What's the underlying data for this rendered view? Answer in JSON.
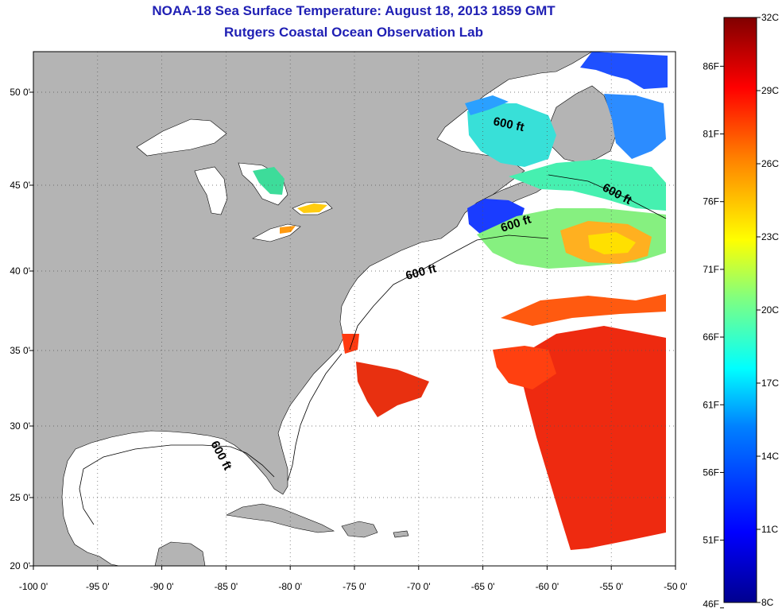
{
  "title": "NOAA-18 Sea Surface Temperature:  August 18, 2013 1859 GMT",
  "subtitle": "Rutgers Coastal Ocean Observation Lab",
  "lon_labels": [
    "-100 0'",
    "-95 0'",
    "-90 0'",
    "-85 0'",
    "-80 0'",
    "-75 0'",
    "-70 0'",
    "-65 0'",
    "-60 0'",
    "-55 0'",
    "-50 0'"
  ],
  "lat_labels": [
    "50 0'",
    "45 0'",
    "40 0'",
    "35 0'",
    "30 0'",
    "25 0'",
    "20 0'"
  ],
  "depth_contour_label": "600 ft",
  "colorbar": {
    "fahrenheit_labels": [
      "86F",
      "81F",
      "76F",
      "71F",
      "66F",
      "61F",
      "56F",
      "51F",
      "46F"
    ],
    "celsius_labels": [
      "32C",
      "29C",
      "26C",
      "23C",
      "20C",
      "17C",
      "14C",
      "11C",
      "8C"
    ],
    "range_c": [
      8,
      32
    ],
    "colors": [
      "#00008f",
      "#0000ff",
      "#0080ff",
      "#00ffff",
      "#80ff80",
      "#ffff00",
      "#ff8000",
      "#ff0000",
      "#800000"
    ]
  },
  "map_colors": {
    "land": "#b4b4b4",
    "water_no_data": "#ffffff"
  }
}
